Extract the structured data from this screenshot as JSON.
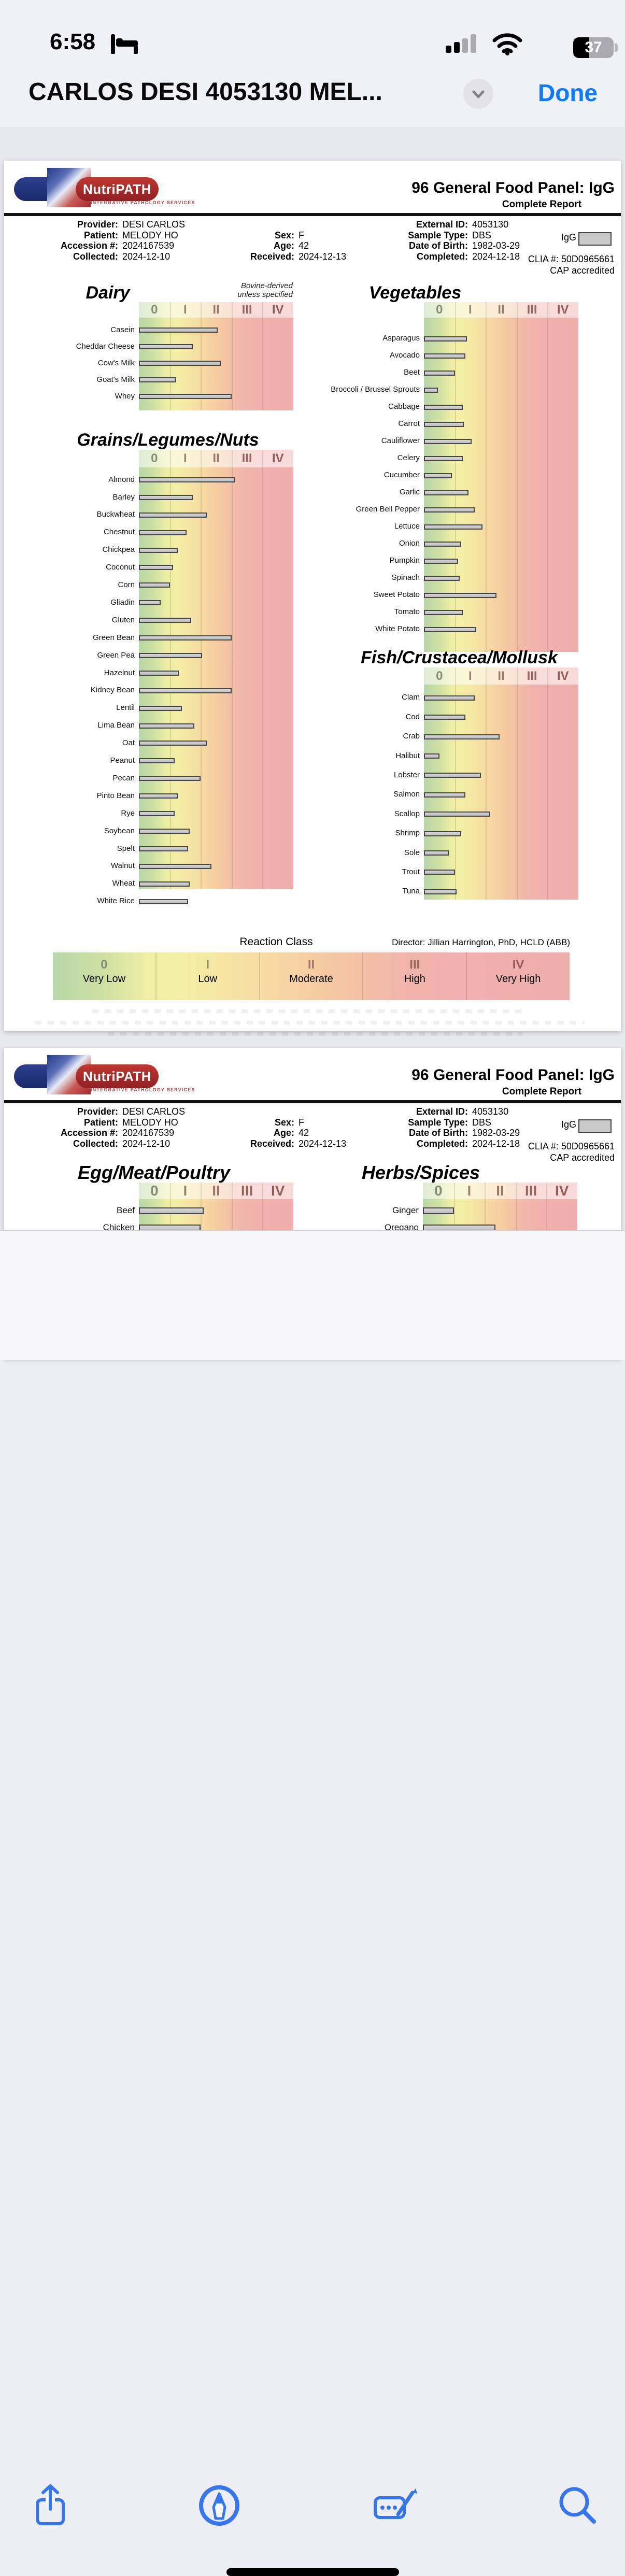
{
  "status_bar": {
    "time": "6:58",
    "battery_percent": "37"
  },
  "title_bar": {
    "title": "CARLOS DESI 4053130 MEL...",
    "done_label": "Done"
  },
  "report": {
    "brand": "NutriPATH",
    "brand_tagline": "INTEGRATIVE PATHOLOGY SERVICES",
    "title": "96 General Food Panel: IgG",
    "subtitle": "Complete Report",
    "info_col1": [
      {
        "label": "Provider:",
        "value": "DESI CARLOS"
      },
      {
        "label": "Patient:",
        "value": "MELODY HO"
      },
      {
        "label": "Accession #:",
        "value": "2024167539"
      },
      {
        "label": "Collected:",
        "value": "2024-12-10"
      }
    ],
    "info_col2": [
      {
        "label": "",
        "value": ""
      },
      {
        "label": "Sex:",
        "value": "F"
      },
      {
        "label": "Age:",
        "value": "42"
      },
      {
        "label": "Received:",
        "value": "2024-12-13"
      }
    ],
    "info_col3": [
      {
        "label": "External ID:",
        "value": "4053130"
      },
      {
        "label": "Sample Type:",
        "value": "DBS"
      },
      {
        "label": "Date of Birth:",
        "value": "1982-03-29"
      },
      {
        "label": "Completed:",
        "value": "2024-12-18"
      }
    ],
    "igg_legend": "IgG",
    "clia": "CLIA #: 50D0965661",
    "cap": "CAP accredited",
    "scale": [
      "0",
      "I",
      "II",
      "III",
      "IV"
    ],
    "dairy_note": [
      "Bovine-derived",
      "unless specified"
    ],
    "legend": {
      "title": "Reaction Class",
      "director": "Director: Jillian Harrington, PhD, HCLD (ABB)",
      "classes": [
        {
          "numeral": "0",
          "label": "Very Low"
        },
        {
          "numeral": "I",
          "label": "Low"
        },
        {
          "numeral": "II",
          "label": "Moderate"
        },
        {
          "numeral": "III",
          "label": "High"
        },
        {
          "numeral": "IV",
          "label": "Very High"
        }
      ]
    }
  },
  "chart_data": [
    {
      "type": "bar",
      "title": "Dairy",
      "note": "Bovine-derived unless specified",
      "xlabel": "Reaction Class",
      "xlim": [
        0,
        5
      ],
      "x_ticks": [
        "0",
        "I",
        "II",
        "III",
        "IV"
      ],
      "categories": [
        "Casein",
        "Cheddar Cheese",
        "Cow's Milk",
        "Goat's Milk",
        "Whey"
      ],
      "values": [
        2.55,
        1.75,
        2.65,
        1.2,
        3.0
      ]
    },
    {
      "type": "bar",
      "title": "Vegetables",
      "xlabel": "Reaction Class",
      "xlim": [
        0,
        5
      ],
      "x_ticks": [
        "0",
        "I",
        "II",
        "III",
        "IV"
      ],
      "categories": [
        "Asparagus",
        "Avocado",
        "Beet",
        "Broccoli / Brussel Sprouts",
        "Cabbage",
        "Carrot",
        "Cauliflower",
        "Celery",
        "Cucumber",
        "Garlic",
        "Green Bell Pepper",
        "Lettuce",
        "Onion",
        "Pumpkin",
        "Spinach",
        "Sweet Potato",
        "Tomato",
        "White Potato"
      ],
      "values": [
        1.4,
        1.35,
        1.0,
        0.45,
        1.25,
        1.3,
        1.55,
        1.25,
        0.9,
        1.45,
        1.65,
        1.9,
        1.2,
        1.1,
        1.15,
        2.35,
        1.25,
        1.7
      ]
    },
    {
      "type": "bar",
      "title": "Grains/Legumes/Nuts",
      "xlabel": "Reaction Class",
      "xlim": [
        0,
        5
      ],
      "x_ticks": [
        "0",
        "I",
        "II",
        "III",
        "IV"
      ],
      "categories": [
        "Almond",
        "Barley",
        "Buckwheat",
        "Chestnut",
        "Chickpea",
        "Coconut",
        "Corn",
        "Gliadin",
        "Gluten",
        "Green Bean",
        "Green Pea",
        "Hazelnut",
        "Kidney Bean",
        "Lentil",
        "Lima Bean",
        "Oat",
        "Peanut",
        "Pecan",
        "Pinto Bean",
        "Rye",
        "Soybean",
        "Spelt",
        "Walnut",
        "Wheat",
        "White Rice"
      ],
      "values": [
        3.1,
        1.75,
        2.2,
        1.55,
        1.25,
        1.1,
        1.0,
        0.7,
        1.7,
        3.0,
        2.05,
        1.3,
        3.0,
        1.4,
        1.8,
        2.2,
        1.15,
        2.0,
        1.25,
        1.15,
        1.65,
        1.6,
        2.35,
        1.65,
        1.6
      ]
    },
    {
      "type": "bar",
      "title": "Fish/Crustacea/Mollusk",
      "xlabel": "Reaction Class",
      "xlim": [
        0,
        5
      ],
      "x_ticks": [
        "0",
        "I",
        "II",
        "III",
        "IV"
      ],
      "categories": [
        "Clam",
        "Cod",
        "Crab",
        "Halibut",
        "Lobster",
        "Salmon",
        "Scallop",
        "Shrimp",
        "Sole",
        "Trout",
        "Tuna"
      ],
      "values": [
        1.65,
        1.35,
        2.45,
        0.5,
        1.85,
        1.35,
        2.15,
        1.2,
        0.8,
        1.0,
        1.05
      ]
    },
    {
      "type": "bar",
      "title": "Egg/Meat/Poultry",
      "xlabel": "Reaction Class",
      "xlim": [
        0,
        5
      ],
      "x_ticks": [
        "0",
        "I",
        "II",
        "III",
        "IV"
      ],
      "categories": [
        "Beef",
        "Chicken"
      ],
      "values": [
        2.1,
        2.0
      ],
      "note": "partially visible - page cut off by toolbar"
    },
    {
      "type": "bar",
      "title": "Herbs/Spices",
      "xlabel": "Reaction Class",
      "xlim": [
        0,
        5
      ],
      "x_ticks": [
        "0",
        "I",
        "II",
        "III",
        "IV"
      ],
      "categories": [
        "Ginger",
        "Oregano"
      ],
      "values": [
        1.0,
        2.35
      ],
      "note": "partially visible - page cut off by toolbar"
    }
  ],
  "toolbar": {
    "items": [
      "share",
      "markup",
      "form-fill",
      "search"
    ]
  }
}
